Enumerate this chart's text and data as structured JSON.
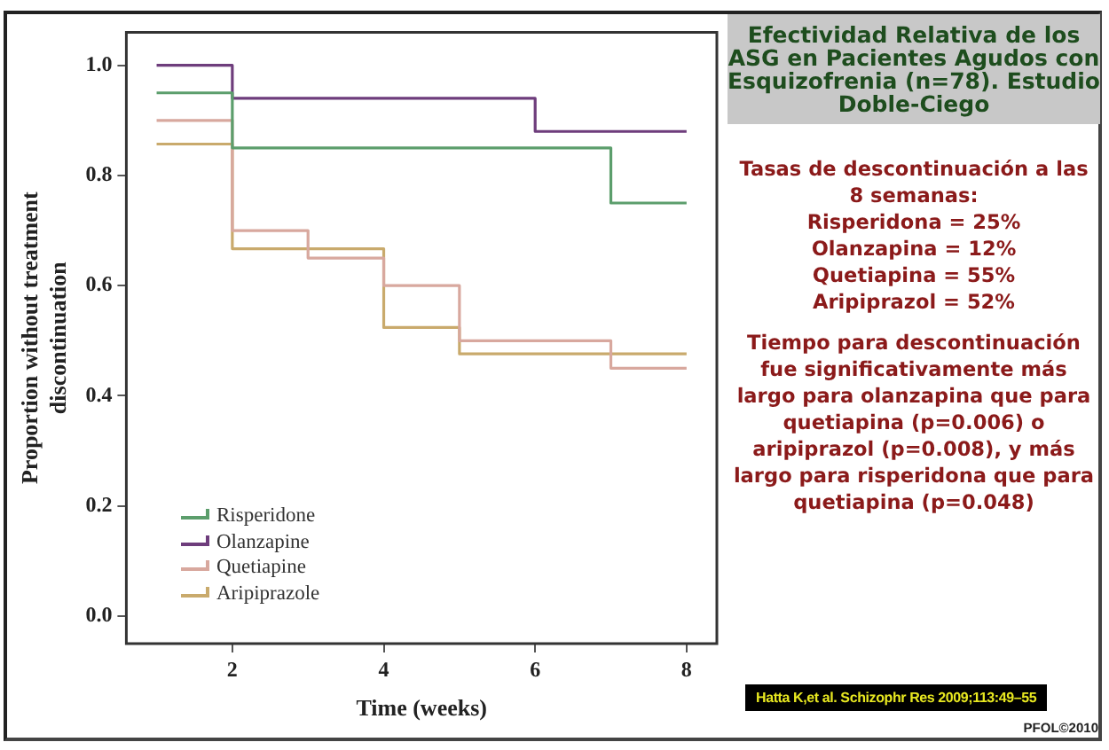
{
  "chart_data": {
    "type": "step",
    "title": "Efectividad Relativa de los ASG en Pacientes Agudos con Esquizofrenia (n=78). Estudio Doble-Ciego",
    "xlabel": "Time (weeks)",
    "ylabel": "Proportion without treatment discontinuation",
    "xlim": [
      0.6,
      8.4
    ],
    "xticks": [
      2,
      4,
      6,
      8
    ],
    "ylim": [
      -0.05,
      1.06
    ],
    "yticks": [
      {
        "value": 0,
        "label": "0.0"
      },
      {
        "value": 0.2,
        "label": "0.2"
      },
      {
        "value": 0.4,
        "label": "0.4"
      },
      {
        "value": 0.6,
        "label": "0.6"
      },
      {
        "value": 0.8,
        "label": "0.8"
      },
      {
        "value": 1,
        "label": "1.0"
      }
    ],
    "series": [
      {
        "name": "Risperidone",
        "color": "#5c9e6c",
        "x": [
          1,
          2,
          7,
          8
        ],
        "values": [
          0.95,
          0.85,
          0.75,
          0.75
        ]
      },
      {
        "name": "Olanzapine",
        "color": "#6e3d7c",
        "x": [
          1,
          2,
          6,
          8
        ],
        "values": [
          1.0,
          0.94,
          0.88,
          0.88
        ]
      },
      {
        "name": "Quetiapine",
        "color": "#d8a89e",
        "x": [
          1,
          2,
          3,
          4,
          5,
          7,
          8
        ],
        "values": [
          0.9,
          0.7,
          0.65,
          0.6,
          0.5,
          0.45,
          0.45
        ]
      },
      {
        "name": "Aripiprazole",
        "color": "#c9aa6c",
        "x": [
          1,
          2,
          4,
          5,
          8
        ],
        "values": [
          0.857,
          0.667,
          0.524,
          0.476,
          0.476
        ]
      }
    ],
    "legend": "bottom left",
    "grid": false,
    "line_style": "solid",
    "marker": "none",
    "annotations": [
      "Tasas de descontinuación a las 8 semanas:\nRisperidona = 25%\nOlanzapina = 12%\nQuetiapina = 55%\nAripiprazol = 52%",
      "Tiempo para descontinuación fue significativamente más largo para olanzapina que para quetiapina (p=0.006) o aripiprazol (p=0.008), y más largo para risperidona que para quetiapina (p=0.048)",
      "Hatta K,et al. Schizophr Res 2009;113:49–55",
      "PFOL©2010"
    ]
  }
}
